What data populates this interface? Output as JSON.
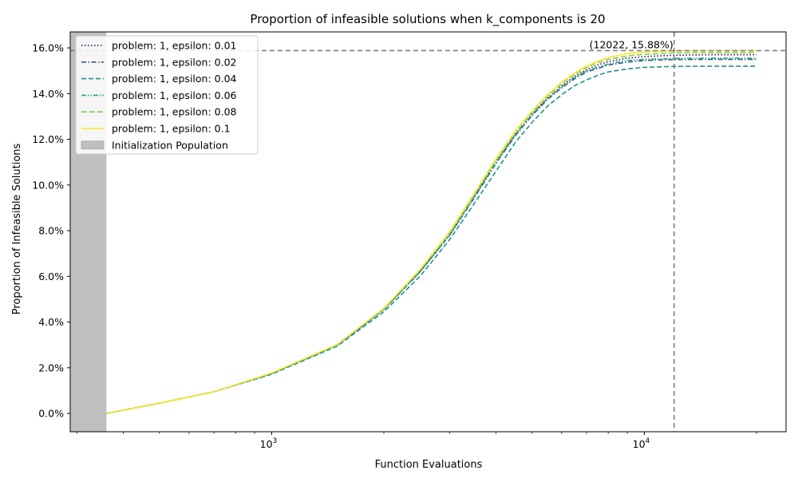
{
  "chart_data": {
    "type": "line",
    "title": "Proportion of infeasible solutions when k_components is 20",
    "xlabel": "Function Evaluations",
    "ylabel": "Proportion of Infeasible Solutions",
    "xscale": "log",
    "xlim": [
      288,
      24000
    ],
    "ylim": [
      -0.8,
      16.7
    ],
    "grid": false,
    "legend_position": "top-left",
    "x_major_ticks": [
      {
        "value": 1000,
        "base": "10",
        "exp": "3"
      },
      {
        "value": 10000,
        "base": "10",
        "exp": "4"
      }
    ],
    "x_minor_ticks": [
      300,
      400,
      500,
      600,
      700,
      800,
      900,
      2000,
      3000,
      4000,
      5000,
      6000,
      7000,
      8000,
      9000,
      20000
    ],
    "y_ticks": [
      {
        "value": 0,
        "label": "0.0%"
      },
      {
        "value": 2,
        "label": "2.0%"
      },
      {
        "value": 4,
        "label": "4.0%"
      },
      {
        "value": 6,
        "label": "6.0%"
      },
      {
        "value": 8,
        "label": "8.0%"
      },
      {
        "value": 10,
        "label": "10.0%"
      },
      {
        "value": 12,
        "label": "12.0%"
      },
      {
        "value": 14,
        "label": "14.0%"
      },
      {
        "value": 16,
        "label": "16.0%"
      }
    ],
    "shaded_region": {
      "name": "Initialization Population",
      "x_start": 288,
      "x_end": 360,
      "color": "#bfbfbf"
    },
    "reference_lines": {
      "vertical_x": 12022,
      "horizontal_y": 15.88,
      "color": "#808080"
    },
    "annotation": {
      "text": "(12022, 15.88%)",
      "x": 12022,
      "y": 15.88
    },
    "series": [
      {
        "name": "problem: 1, epsilon: 0.01",
        "color": "#440154",
        "dash": "dotted",
        "final": 15.7,
        "x": [
          360,
          500,
          700,
          1000,
          1500,
          2000,
          2500,
          3000,
          3500,
          4000,
          4500,
          5000,
          5500,
          6000,
          6500,
          7000,
          7500,
          8000,
          9000,
          10000,
          12022,
          15000,
          20000
        ],
        "y": [
          0.0,
          0.45,
          0.95,
          1.75,
          3.0,
          4.55,
          6.2,
          7.8,
          9.5,
          11.0,
          12.2,
          13.1,
          13.8,
          14.35,
          14.75,
          15.05,
          15.25,
          15.4,
          15.55,
          15.62,
          15.68,
          15.7,
          15.7
        ]
      },
      {
        "name": "problem: 1, epsilon: 0.02",
        "color": "#3b528b",
        "dash": "dashdot",
        "final": 15.5,
        "x": [
          360,
          500,
          700,
          1000,
          1500,
          2000,
          2500,
          3000,
          3500,
          4000,
          4500,
          5000,
          5500,
          6000,
          6500,
          7000,
          7500,
          8000,
          9000,
          10000,
          12022,
          15000,
          20000
        ],
        "y": [
          0.0,
          0.45,
          0.95,
          1.75,
          3.0,
          4.55,
          6.2,
          7.8,
          9.45,
          10.95,
          12.15,
          13.05,
          13.75,
          14.25,
          14.65,
          14.95,
          15.1,
          15.25,
          15.38,
          15.45,
          15.49,
          15.5,
          15.5
        ]
      },
      {
        "name": "problem: 1, epsilon: 0.04",
        "color": "#21918c",
        "dash": "dashed",
        "final": 15.2,
        "x": [
          360,
          500,
          700,
          1000,
          1500,
          2000,
          2500,
          3000,
          3500,
          4000,
          4500,
          5000,
          5500,
          6000,
          6500,
          7000,
          7500,
          8000,
          9000,
          10000,
          12022,
          15000,
          20000
        ],
        "y": [
          0.0,
          0.45,
          0.95,
          1.72,
          2.95,
          4.45,
          6.0,
          7.6,
          9.2,
          10.6,
          11.85,
          12.75,
          13.45,
          13.95,
          14.35,
          14.6,
          14.8,
          14.95,
          15.08,
          15.15,
          15.19,
          15.2,
          15.2
        ]
      },
      {
        "name": "problem: 1, epsilon: 0.06",
        "color": "#22a884",
        "dash": "dashdotdot",
        "final": 15.55,
        "x": [
          360,
          500,
          700,
          1000,
          1500,
          2000,
          2500,
          3000,
          3500,
          4000,
          4500,
          5000,
          5500,
          6000,
          6500,
          7000,
          7500,
          8000,
          9000,
          10000,
          12022,
          15000,
          20000
        ],
        "y": [
          0.0,
          0.45,
          0.95,
          1.75,
          3.0,
          4.55,
          6.2,
          7.8,
          9.5,
          11.0,
          12.2,
          13.1,
          13.8,
          14.3,
          14.7,
          15.0,
          15.15,
          15.3,
          15.45,
          15.5,
          15.54,
          15.55,
          15.55
        ]
      },
      {
        "name": "problem: 1, epsilon: 0.08",
        "color": "#7ad151",
        "dash": "longdash",
        "final": 15.8,
        "x": [
          360,
          500,
          700,
          1000,
          1500,
          2000,
          2500,
          3000,
          3500,
          4000,
          4500,
          5000,
          5500,
          6000,
          6500,
          7000,
          7500,
          8000,
          9000,
          10000,
          12022,
          15000,
          20000
        ],
        "y": [
          0.0,
          0.45,
          0.95,
          1.77,
          3.02,
          4.6,
          6.28,
          7.9,
          9.6,
          11.1,
          12.3,
          13.2,
          13.9,
          14.45,
          14.85,
          15.15,
          15.35,
          15.5,
          15.65,
          15.72,
          15.78,
          15.8,
          15.8
        ]
      },
      {
        "name": "problem: 1, epsilon: 0.1",
        "color": "#fde725",
        "dash": "solid",
        "final": 15.88,
        "x": [
          360,
          500,
          700,
          1000,
          1500,
          2000,
          2500,
          3000,
          3500,
          4000,
          4500,
          5000,
          5500,
          6000,
          6500,
          7000,
          7500,
          8000,
          9000,
          10000,
          12022,
          15000,
          20000
        ],
        "y": [
          0.0,
          0.45,
          0.95,
          1.77,
          3.02,
          4.6,
          6.3,
          7.95,
          9.65,
          11.15,
          12.35,
          13.25,
          13.95,
          14.5,
          14.9,
          15.2,
          15.42,
          15.58,
          15.75,
          15.82,
          15.87,
          15.88,
          15.88
        ]
      }
    ]
  }
}
